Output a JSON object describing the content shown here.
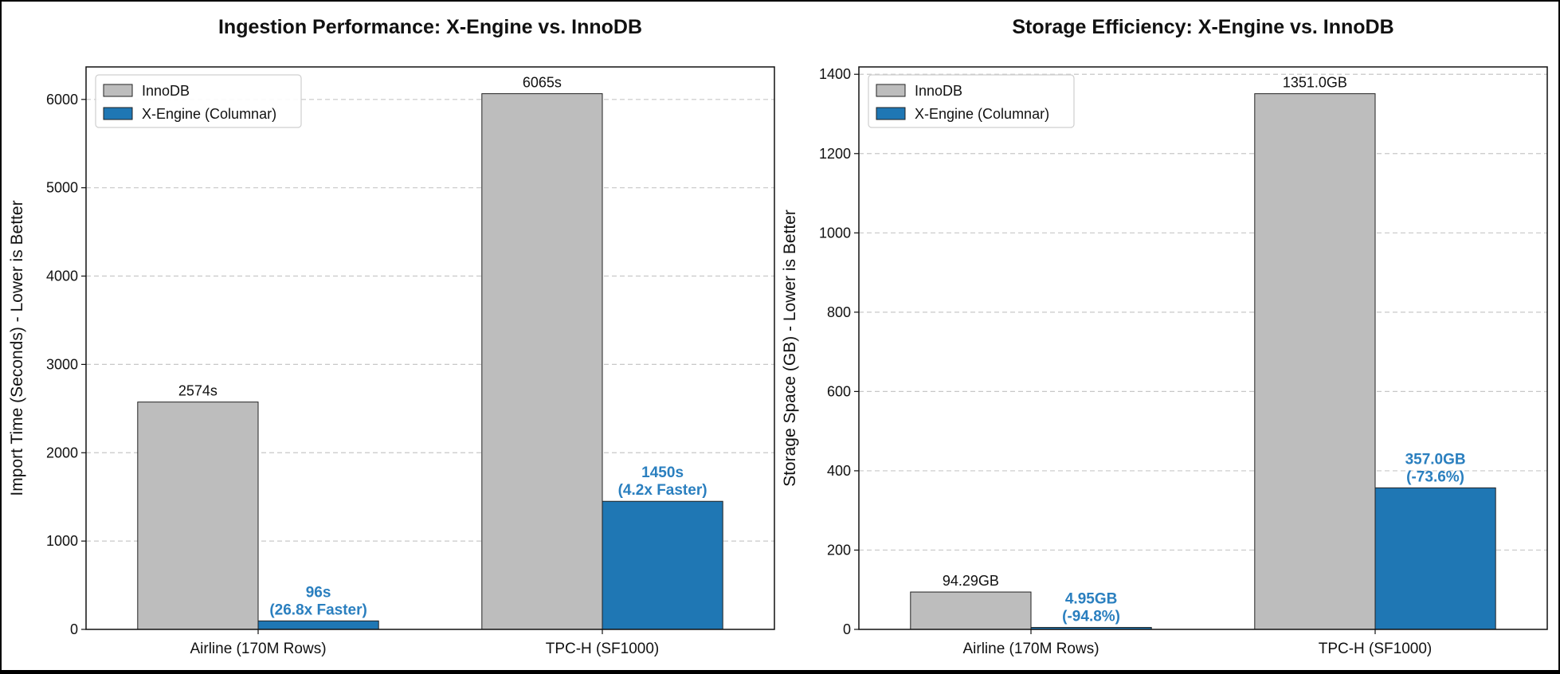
{
  "chart_data": [
    {
      "type": "bar",
      "title": "Ingestion Performance: X-Engine vs. InnoDB",
      "xlabel": "",
      "ylabel": "Import Time (Seconds) - Lower is Better",
      "categories": [
        "Airline (170M Rows)",
        "TPC-H (SF1000)"
      ],
      "ylim": [
        0,
        6368
      ],
      "yticks": [
        0,
        1000,
        2000,
        3000,
        4000,
        5000,
        6000
      ],
      "grid": "y-dashed",
      "legend_position": "top-left",
      "series": [
        {
          "name": "InnoDB",
          "color": "#bdbdbd",
          "values": [
            2574,
            6065
          ],
          "labels": [
            [
              "2574s"
            ],
            [
              "6065s"
            ]
          ],
          "label_style": "normal"
        },
        {
          "name": "X-Engine (Columnar)",
          "color": "#1f77b4",
          "values": [
            96,
            1450
          ],
          "labels": [
            [
              "96s",
              "(26.8x Faster)"
            ],
            [
              "1450s",
              "(4.2x Faster)"
            ]
          ],
          "label_style": "bold"
        }
      ]
    },
    {
      "type": "bar",
      "title": "Storage Efficiency: X-Engine vs. InnoDB",
      "xlabel": "",
      "ylabel": "Storage Space (GB) - Lower is Better",
      "categories": [
        "Airline (170M Rows)",
        "TPC-H (SF1000)"
      ],
      "ylim": [
        0,
        1418.55
      ],
      "yticks": [
        0,
        200,
        400,
        600,
        800,
        1000,
        1200,
        1400
      ],
      "grid": "y-dashed",
      "legend_position": "top-left",
      "series": [
        {
          "name": "InnoDB",
          "color": "#bdbdbd",
          "values": [
            94.29,
            1351.0
          ],
          "labels": [
            [
              "94.29GB"
            ],
            [
              "1351.0GB"
            ]
          ],
          "label_style": "normal"
        },
        {
          "name": "X-Engine (Columnar)",
          "color": "#1f77b4",
          "values": [
            4.95,
            357.0
          ],
          "labels": [
            [
              "4.95GB",
              "(-94.8%)"
            ],
            [
              "357.0GB",
              "(-73.6%)"
            ]
          ],
          "label_style": "bold"
        }
      ]
    }
  ]
}
